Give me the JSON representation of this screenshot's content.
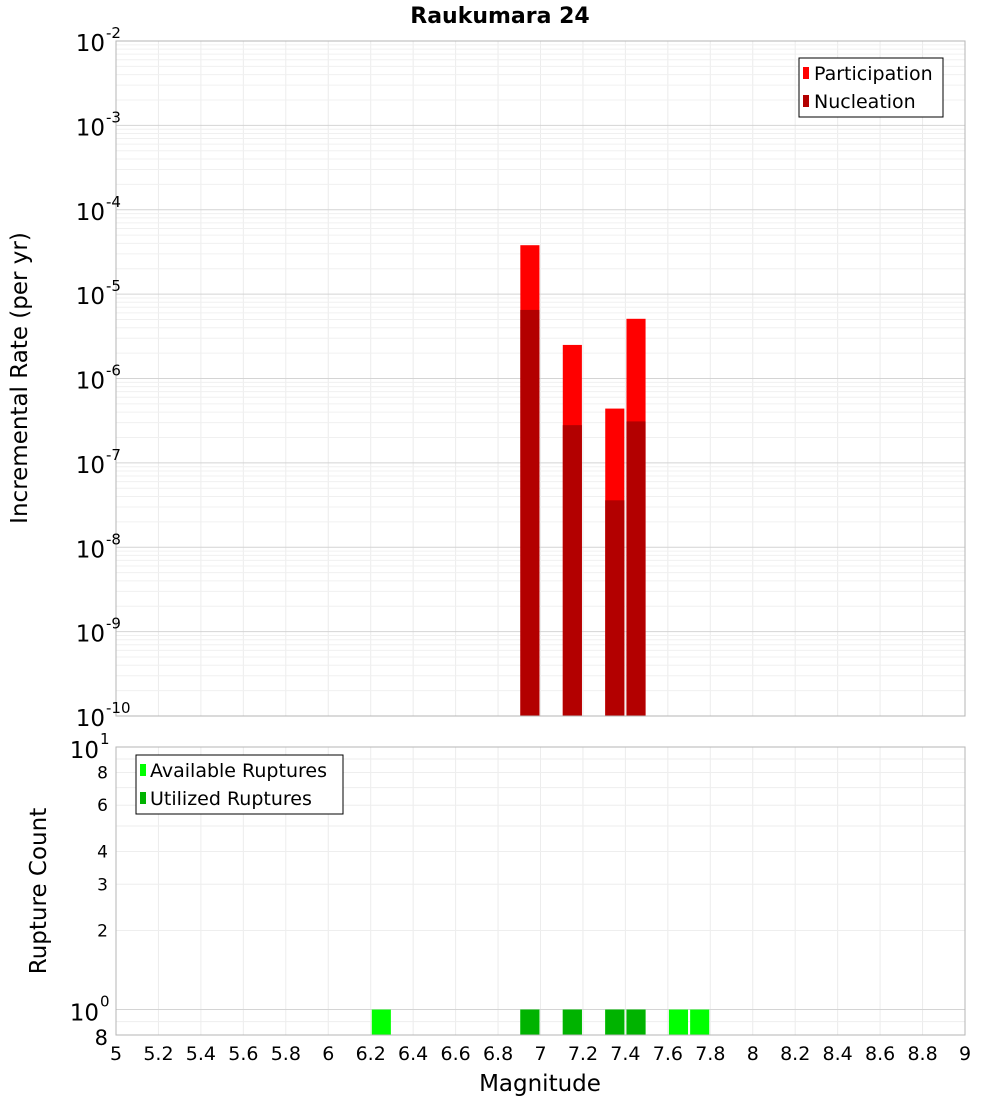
{
  "chart_data": [
    {
      "type": "bar",
      "title": "Raukumara 24",
      "xlabel": "",
      "ylabel": "Incremental Rate (per yr)",
      "yscale": "log",
      "xlim": [
        5,
        9
      ],
      "ylim": [
        1e-10,
        0.01
      ],
      "ytick_exponents": [
        -10,
        -9,
        -8,
        -7,
        -6,
        -5,
        -4,
        -3,
        -2
      ],
      "legend_position": "top-right",
      "grid": true,
      "bar_width": 0.09,
      "series": [
        {
          "name": "Participation",
          "color": "#ff0000",
          "x": [
            6.95,
            7.15,
            7.35,
            7.45
          ],
          "values": [
            3.8e-05,
            2.5e-06,
            4.4e-07,
            5.1e-06
          ]
        },
        {
          "name": "Nucleation",
          "color": "#b30000",
          "x": [
            6.95,
            7.15,
            7.35,
            7.45
          ],
          "values": [
            6.5e-06,
            2.8e-07,
            3.6e-08,
            3.1e-07
          ]
        }
      ]
    },
    {
      "type": "bar",
      "title": "",
      "xlabel": "Magnitude",
      "ylabel": "Rupture Count",
      "yscale": "log",
      "xlim": [
        5,
        9
      ],
      "ylim": [
        0.8,
        10
      ],
      "x_ticks": [
        "5",
        "5.2",
        "5.4",
        "5.6",
        "5.8",
        "6",
        "6.2",
        "6.4",
        "6.6",
        "6.8",
        "7",
        "7.2",
        "7.4",
        "7.6",
        "7.8",
        "8",
        "8.2",
        "8.4",
        "8.6",
        "8.8",
        "9"
      ],
      "y_minor_tick_labels": [
        "8",
        "6",
        "4",
        "3",
        "2",
        "8"
      ],
      "legend_position": "top-left",
      "grid": true,
      "bar_width": 0.09,
      "series": [
        {
          "name": "Available Ruptures",
          "color": "#00ff00",
          "x": [
            6.25,
            6.95,
            7.15,
            7.35,
            7.45,
            7.65,
            7.75
          ],
          "values": [
            1,
            1,
            1,
            1,
            1,
            1,
            1
          ]
        },
        {
          "name": "Utilized Ruptures",
          "color": "#00b300",
          "x": [
            6.95,
            7.15,
            7.35,
            7.45
          ],
          "values": [
            1,
            1,
            1,
            1
          ]
        }
      ]
    }
  ]
}
